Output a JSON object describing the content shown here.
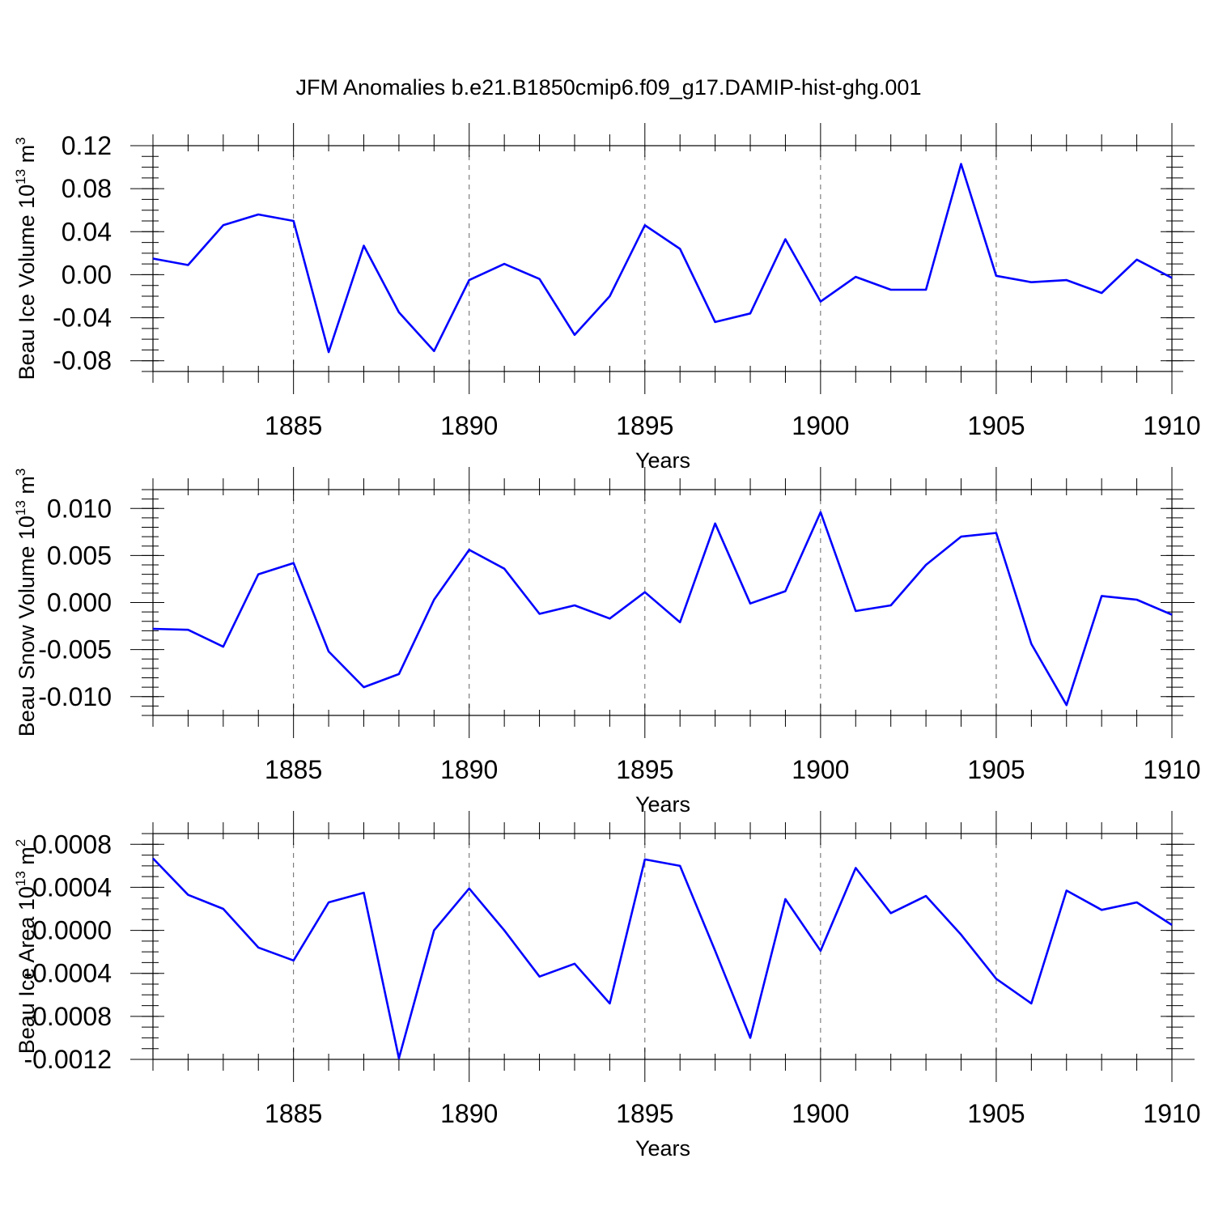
{
  "title": "JFM Anomalies b.e21.B1850cmip6.f09_g17.DAMIP-hist-ghg.001",
  "line_color": "#0000ff",
  "chart_data": [
    {
      "type": "line",
      "ylabel": "Beau Ice Volume 10",
      "ylabel_exp": "13",
      "ylabel_unit": " m",
      "ylabel_unit_exp": "3",
      "xlabel": "Years",
      "xlim": [
        1881,
        1910
      ],
      "ylim": [
        -0.09,
        0.12
      ],
      "x_ticks": [
        1885,
        1890,
        1895,
        1900,
        1905,
        1910
      ],
      "x_tick_labels": [
        "1885",
        "1890",
        "1895",
        "1900",
        "1905",
        "1910"
      ],
      "y_ticks": [
        -0.08,
        -0.04,
        0.0,
        0.04,
        0.08,
        0.12
      ],
      "y_tick_labels": [
        "-0.08",
        "-0.04",
        "0.00",
        "0.04",
        "0.08",
        "0.12"
      ],
      "y_minor_step": 0.01,
      "grid": "vertical dashed at major x ticks",
      "x": [
        1881,
        1882,
        1883,
        1884,
        1885,
        1886,
        1887,
        1888,
        1889,
        1890,
        1891,
        1892,
        1893,
        1894,
        1895,
        1896,
        1897,
        1898,
        1899,
        1900,
        1901,
        1902,
        1903,
        1904,
        1905,
        1906,
        1907,
        1908,
        1909,
        1910
      ],
      "y": [
        0.015,
        0.009,
        0.046,
        0.056,
        0.05,
        -0.072,
        0.027,
        -0.035,
        -0.071,
        -0.005,
        0.01,
        -0.004,
        -0.056,
        -0.02,
        0.046,
        0.024,
        -0.044,
        -0.036,
        0.033,
        -0.025,
        -0.002,
        -0.014,
        -0.014,
        0.103,
        -0.001,
        -0.007,
        -0.005,
        -0.017,
        0.014,
        -0.003
      ]
    },
    {
      "type": "line",
      "ylabel": "Beau Snow Volume 10",
      "ylabel_exp": "13",
      "ylabel_unit": " m",
      "ylabel_unit_exp": "3",
      "xlabel": "Years",
      "xlim": [
        1881,
        1910
      ],
      "ylim": [
        -0.012,
        0.012
      ],
      "x_ticks": [
        1885,
        1890,
        1895,
        1900,
        1905,
        1910
      ],
      "x_tick_labels": [
        "1885",
        "1890",
        "1895",
        "1900",
        "1905",
        "1910"
      ],
      "y_ticks": [
        -0.01,
        -0.005,
        0.0,
        0.005,
        0.01
      ],
      "y_tick_labels": [
        "-0.010",
        "-0.005",
        "0.000",
        "0.005",
        "0.010"
      ],
      "y_minor_step": 0.001,
      "grid": "vertical dashed at major x ticks",
      "x": [
        1881,
        1882,
        1883,
        1884,
        1885,
        1886,
        1887,
        1888,
        1889,
        1890,
        1891,
        1892,
        1893,
        1894,
        1895,
        1896,
        1897,
        1898,
        1899,
        1900,
        1901,
        1902,
        1903,
        1904,
        1905,
        1906,
        1907,
        1908,
        1909,
        1910
      ],
      "y": [
        -0.0028,
        -0.0029,
        -0.0047,
        0.003,
        0.0042,
        -0.0052,
        -0.009,
        -0.0076,
        0.0003,
        0.0056,
        0.0036,
        -0.0012,
        -0.0003,
        -0.0017,
        0.0011,
        -0.0021,
        0.0084,
        -0.0001,
        0.0012,
        0.0096,
        -0.0009,
        -0.0003,
        0.004,
        0.007,
        0.0074,
        -0.0044,
        -0.0109,
        0.0007,
        0.0003,
        -0.0013
      ]
    },
    {
      "type": "line",
      "ylabel": "Beau Ice Area 10",
      "ylabel_exp": "13",
      "ylabel_unit": " m",
      "ylabel_unit_exp": "2",
      "xlabel": "Years",
      "xlim": [
        1881,
        1910
      ],
      "ylim": [
        -0.0012,
        0.0009
      ],
      "x_ticks": [
        1885,
        1890,
        1895,
        1900,
        1905,
        1910
      ],
      "x_tick_labels": [
        "1885",
        "1890",
        "1895",
        "1900",
        "1905",
        "1910"
      ],
      "y_ticks": [
        -0.0012,
        -0.0008,
        -0.0004,
        0.0,
        0.0004,
        0.0008
      ],
      "y_tick_labels": [
        "-0.0012",
        "-0.0008",
        "-0.0004",
        "0.0000",
        "0.0004",
        "0.0008"
      ],
      "y_minor_step": 0.0001,
      "grid": "vertical dashed at major x ticks",
      "x": [
        1881,
        1882,
        1883,
        1884,
        1885,
        1886,
        1887,
        1888,
        1889,
        1890,
        1891,
        1892,
        1893,
        1894,
        1895,
        1896,
        1897,
        1898,
        1899,
        1900,
        1901,
        1902,
        1903,
        1904,
        1905,
        1906,
        1907,
        1908,
        1909,
        1910
      ],
      "y": [
        0.00067,
        0.00033,
        0.0002,
        -0.00016,
        -0.00028,
        0.00026,
        0.00035,
        -0.00119,
        0.0,
        0.00039,
        0.0,
        -0.00043,
        -0.00031,
        -0.00068,
        0.00066,
        0.0006,
        -0.00019,
        -0.001,
        0.00029,
        -0.00019,
        0.00058,
        0.00016,
        0.00032,
        -4e-05,
        -0.00045,
        -0.00068,
        0.00037,
        0.00019,
        0.00026,
        5e-05
      ]
    }
  ]
}
